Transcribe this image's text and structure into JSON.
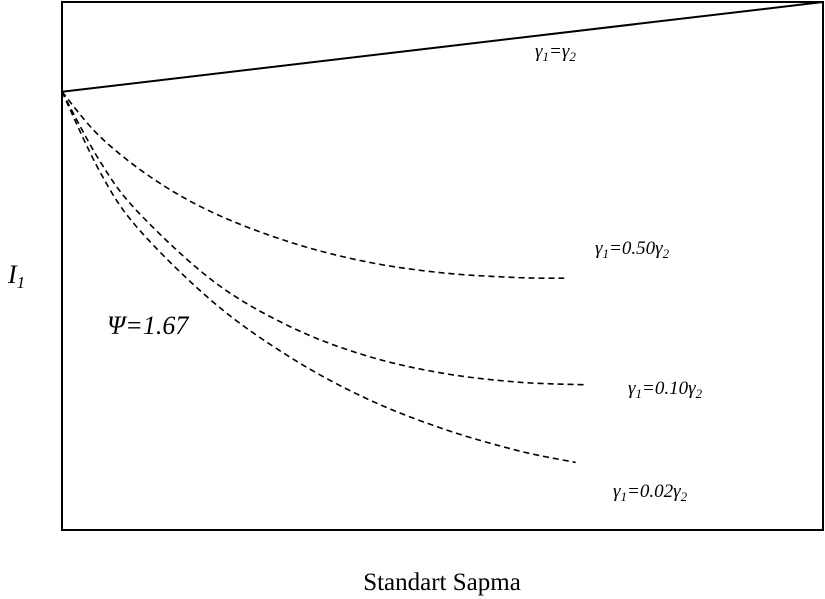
{
  "chart_data": {
    "type": "line",
    "xlabel": "Standart Sapma",
    "ylabel": "I",
    "ylabel_sub": "1",
    "annotation": "Ψ=1.67",
    "series": [
      {
        "name": "γ1=γ2",
        "label_parts": [
          "γ",
          "1",
          "=γ",
          "2"
        ],
        "style": "solid",
        "points": [
          [
            0,
            0.83
          ],
          [
            1,
            1.0
          ]
        ]
      },
      {
        "name": "γ1=0.50γ2",
        "label_parts": [
          "γ",
          "1",
          "=0.50γ",
          "2"
        ],
        "style": "dashed",
        "points": [
          [
            0,
            0.83
          ],
          [
            0.05,
            0.745
          ],
          [
            0.12,
            0.665
          ],
          [
            0.2,
            0.6
          ],
          [
            0.3,
            0.545
          ],
          [
            0.4,
            0.508
          ],
          [
            0.5,
            0.487
          ],
          [
            0.6,
            0.478
          ],
          [
            0.66,
            0.477
          ]
        ]
      },
      {
        "name": "γ1=0.10γ2",
        "label_parts": [
          "γ",
          "1",
          "=0.10γ",
          "2"
        ],
        "style": "dashed",
        "points": [
          [
            0,
            0.83
          ],
          [
            0.05,
            0.698
          ],
          [
            0.1,
            0.602
          ],
          [
            0.2,
            0.47
          ],
          [
            0.3,
            0.385
          ],
          [
            0.4,
            0.33
          ],
          [
            0.5,
            0.297
          ],
          [
            0.6,
            0.28
          ],
          [
            0.69,
            0.275
          ]
        ]
      },
      {
        "name": "γ1=0.02γ2",
        "label_parts": [
          "γ",
          "1",
          "=0.02γ",
          "2"
        ],
        "style": "dashed",
        "points": [
          [
            0,
            0.83
          ],
          [
            0.05,
            0.678
          ],
          [
            0.1,
            0.571
          ],
          [
            0.2,
            0.43
          ],
          [
            0.3,
            0.327
          ],
          [
            0.4,
            0.249
          ],
          [
            0.5,
            0.192
          ],
          [
            0.6,
            0.15
          ],
          [
            0.675,
            0.128
          ]
        ]
      }
    ],
    "xlim": [
      0,
      1
    ],
    "ylim": [
      0,
      1
    ],
    "grid": false,
    "legend": "none"
  }
}
